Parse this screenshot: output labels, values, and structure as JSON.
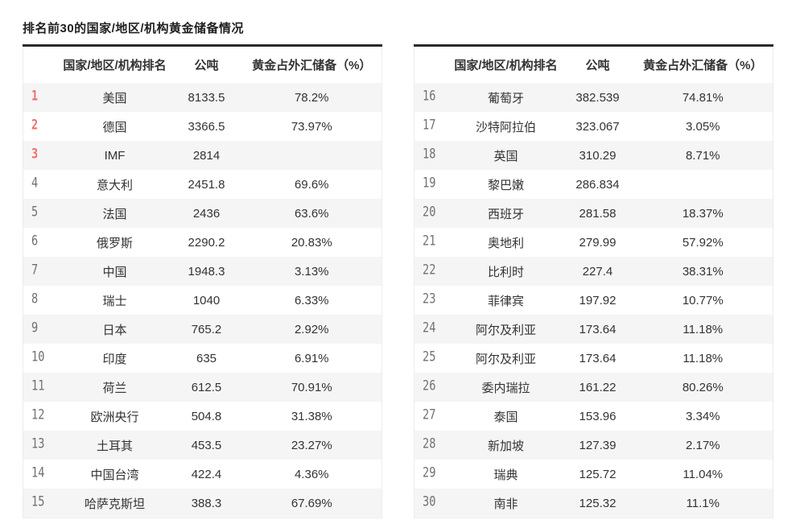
{
  "title": "排名前30的国家/地区/机构黄金储备情况",
  "styles": {
    "top_border_color": "#2a2a2a",
    "alt_row_bg": "#f5f5f5",
    "rank_color": "#707070",
    "rank_top3_color": "#f16d6d",
    "text_color": "#333333"
  },
  "chart_data": [
    {
      "type": "table",
      "columns": [
        "国家/地区/机构排名",
        "公吨",
        "黄金占外汇储备（%）"
      ],
      "rows": [
        {
          "rank": "1",
          "name": "美国",
          "tons": "8133.5",
          "share": "78.2%"
        },
        {
          "rank": "2",
          "name": "德国",
          "tons": "3366.5",
          "share": "73.97%"
        },
        {
          "rank": "3",
          "name": "IMF",
          "tons": "2814",
          "share": ""
        },
        {
          "rank": "4",
          "name": "意大利",
          "tons": "2451.8",
          "share": "69.6%"
        },
        {
          "rank": "5",
          "name": "法国",
          "tons": "2436",
          "share": "63.6%"
        },
        {
          "rank": "6",
          "name": "俄罗斯",
          "tons": "2290.2",
          "share": "20.83%"
        },
        {
          "rank": "7",
          "name": "中国",
          "tons": "1948.3",
          "share": "3.13%"
        },
        {
          "rank": "8",
          "name": "瑞士",
          "tons": "1040",
          "share": "6.33%"
        },
        {
          "rank": "9",
          "name": "日本",
          "tons": "765.2",
          "share": "2.92%"
        },
        {
          "rank": "10",
          "name": "印度",
          "tons": "635",
          "share": "6.91%"
        },
        {
          "rank": "11",
          "name": "荷兰",
          "tons": "612.5",
          "share": "70.91%"
        },
        {
          "rank": "12",
          "name": "欧洲央行",
          "tons": "504.8",
          "share": "31.38%"
        },
        {
          "rank": "13",
          "name": "土耳其",
          "tons": "453.5",
          "share": "23.27%"
        },
        {
          "rank": "14",
          "name": "中国台湾",
          "tons": "422.4",
          "share": "4.36%"
        },
        {
          "rank": "15",
          "name": "哈萨克斯坦",
          "tons": "388.3",
          "share": "67.69%"
        }
      ]
    },
    {
      "type": "table",
      "columns": [
        "国家/地区/机构排名",
        "公吨",
        "黄金占外汇储备（%）"
      ],
      "rows": [
        {
          "rank": "16",
          "name": "葡萄牙",
          "tons": "382.539",
          "share": "74.81%"
        },
        {
          "rank": "17",
          "name": "沙特阿拉伯",
          "tons": "323.067",
          "share": "3.05%"
        },
        {
          "rank": "18",
          "name": "英国",
          "tons": "310.29",
          "share": "8.71%"
        },
        {
          "rank": "19",
          "name": "黎巴嫩",
          "tons": "286.834",
          "share": ""
        },
        {
          "rank": "20",
          "name": "西班牙",
          "tons": "281.58",
          "share": "18.37%"
        },
        {
          "rank": "21",
          "name": "奥地利",
          "tons": "279.99",
          "share": "57.92%"
        },
        {
          "rank": "22",
          "name": "比利时",
          "tons": "227.4",
          "share": "38.31%"
        },
        {
          "rank": "23",
          "name": "菲律宾",
          "tons": "197.92",
          "share": "10.77%"
        },
        {
          "rank": "24",
          "name": "阿尔及利亚",
          "tons": "173.64",
          "share": "11.18%"
        },
        {
          "rank": "25",
          "name": "阿尔及利亚",
          "tons": "173.64",
          "share": "11.18%"
        },
        {
          "rank": "26",
          "name": "委内瑞拉",
          "tons": "161.22",
          "share": "80.26%"
        },
        {
          "rank": "27",
          "name": "泰国",
          "tons": "153.96",
          "share": "3.34%"
        },
        {
          "rank": "28",
          "name": "新加坡",
          "tons": "127.39",
          "share": "2.17%"
        },
        {
          "rank": "29",
          "name": "瑞典",
          "tons": "125.72",
          "share": "11.04%"
        },
        {
          "rank": "30",
          "name": "南非",
          "tons": "125.32",
          "share": "11.1%"
        }
      ]
    }
  ]
}
